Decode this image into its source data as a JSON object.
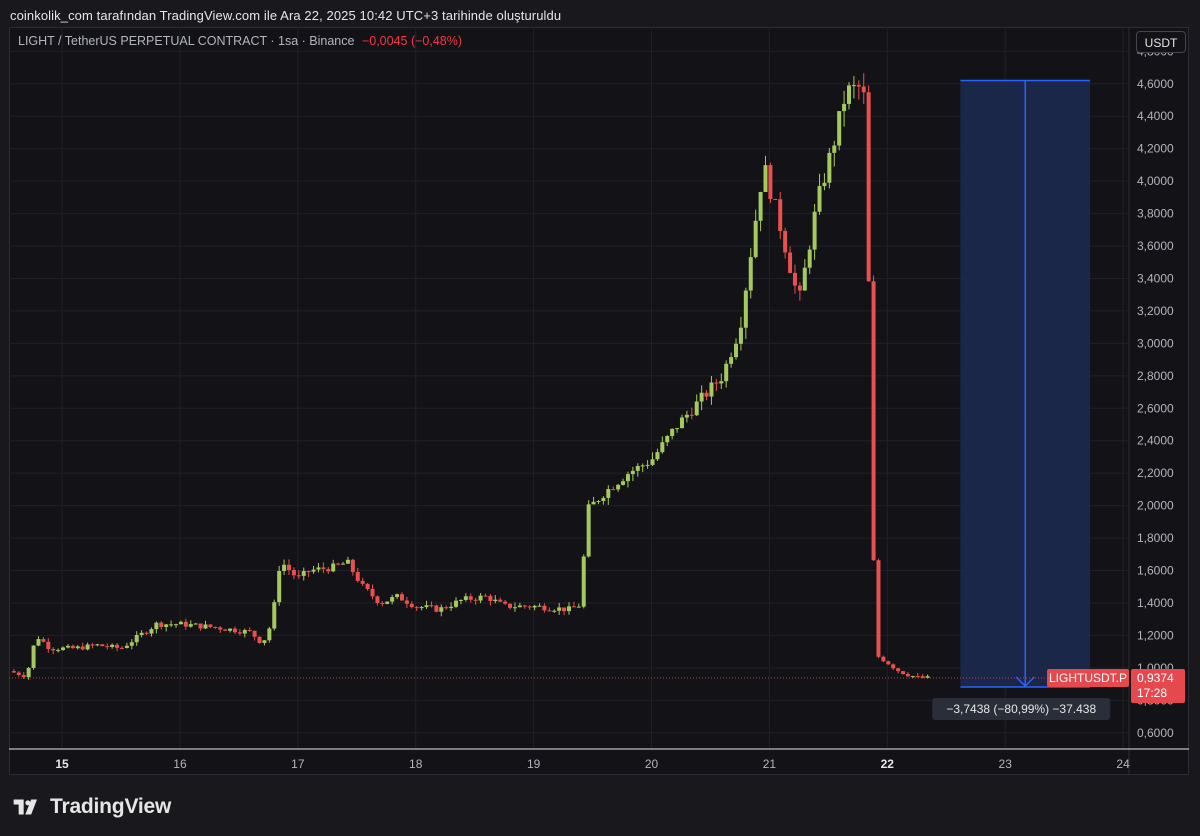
{
  "caption": "coinkolik_com tarafından TradingView.com ile Ara 22, 2025 10:42 UTC+3 tarihinde oluşturuldu",
  "legend": {
    "symbol": "LIGHT / TetherUS PERPETUAL CONTRACT · 1sa · Binance",
    "change": "−0,0045 (−0,48%)"
  },
  "unit_button": "USDT",
  "brand": "TradingView",
  "colors": {
    "up": "#a4c95e",
    "down": "#e8514e",
    "measure": "#2962ff",
    "measure_fill": "#1c2a4e",
    "price_tag": "#e5484d"
  },
  "chart_data": {
    "type": "candlestick",
    "symbol_tag": "LIGHTUSDT.P",
    "last_price": "0,9374",
    "countdown": "17:28",
    "ylim": [
      0.5,
      4.95
    ],
    "y_ticks": [
      "0,6000",
      "0,8000",
      "1,0000",
      "1,2000",
      "1,4000",
      "1,6000",
      "1,8000",
      "2,0000",
      "2,2000",
      "2,4000",
      "2,6000",
      "2,8000",
      "3,0000",
      "3,2000",
      "3,4000",
      "3,6000",
      "3,8000",
      "4,0000",
      "4,2000",
      "4,4000",
      "4,6000",
      "4,8000"
    ],
    "x_ticks": [
      "15",
      "16",
      "17",
      "18",
      "19",
      "20",
      "21",
      "22",
      "23",
      "24"
    ],
    "x_range_days": [
      14.55,
      24.05
    ],
    "ohlc_anchors": [
      [
        14.55,
        0.98
      ],
      [
        14.7,
        0.95
      ],
      [
        14.78,
        1.2
      ],
      [
        14.9,
        1.12
      ],
      [
        15.1,
        1.12
      ],
      [
        15.3,
        1.14
      ],
      [
        15.5,
        1.12
      ],
      [
        15.8,
        1.27
      ],
      [
        16.0,
        1.27
      ],
      [
        16.3,
        1.25
      ],
      [
        16.6,
        1.22
      ],
      [
        16.7,
        1.15
      ],
      [
        16.78,
        1.28
      ],
      [
        16.85,
        1.66
      ],
      [
        17.0,
        1.55
      ],
      [
        17.1,
        1.6
      ],
      [
        17.3,
        1.62
      ],
      [
        17.42,
        1.65
      ],
      [
        17.55,
        1.5
      ],
      [
        17.7,
        1.4
      ],
      [
        17.85,
        1.44
      ],
      [
        18.0,
        1.38
      ],
      [
        18.2,
        1.36
      ],
      [
        18.4,
        1.42
      ],
      [
        18.6,
        1.44
      ],
      [
        18.75,
        1.38
      ],
      [
        19.0,
        1.38
      ],
      [
        19.3,
        1.36
      ],
      [
        19.4,
        1.39
      ],
      [
        19.45,
        1.97
      ],
      [
        19.6,
        2.08
      ],
      [
        19.8,
        2.2
      ],
      [
        20.0,
        2.28
      ],
      [
        20.2,
        2.48
      ],
      [
        20.4,
        2.64
      ],
      [
        20.6,
        2.8
      ],
      [
        20.75,
        3.1
      ],
      [
        20.85,
        3.6
      ],
      [
        20.95,
        4.1
      ],
      [
        21.1,
        3.7
      ],
      [
        21.25,
        3.25
      ],
      [
        21.4,
        3.85
      ],
      [
        21.55,
        4.25
      ],
      [
        21.65,
        4.55
      ],
      [
        21.78,
        4.58
      ],
      [
        21.82,
        4.45
      ],
      [
        21.86,
        2.48
      ],
      [
        21.9,
        1.08
      ],
      [
        21.97,
        1.05
      ],
      [
        22.1,
        0.98
      ],
      [
        22.25,
        0.94
      ],
      [
        22.35,
        0.937
      ]
    ],
    "measure": {
      "start_price": 4.62,
      "end_price": 0.882,
      "label": "−3,7438 (−80,99%) −37.438"
    }
  }
}
